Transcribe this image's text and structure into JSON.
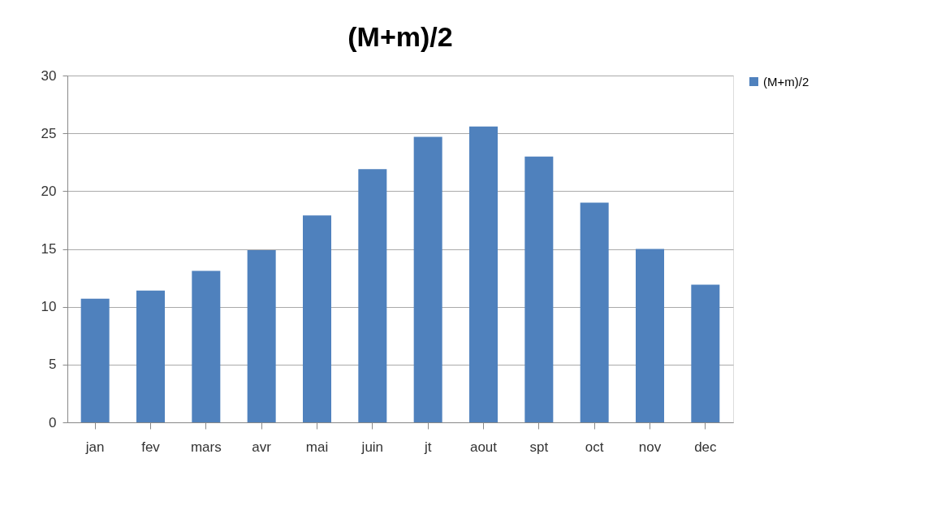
{
  "chart_data": {
    "type": "bar",
    "title": "(M+m)/2",
    "categories": [
      "jan",
      "fev",
      "mars",
      "avr",
      "mai",
      "juin",
      "jt",
      "aout",
      "spt",
      "oct",
      "nov",
      "dec"
    ],
    "series": [
      {
        "name": "(M+m)/2",
        "color": "#4f81bd",
        "values": [
          10.7,
          11.4,
          13.1,
          14.9,
          17.9,
          21.9,
          24.7,
          25.6,
          23.0,
          19.0,
          15.0,
          11.9
        ]
      }
    ],
    "ylim": [
      0,
      30
    ],
    "yticks": [
      0,
      5,
      10,
      15,
      20,
      25,
      30
    ],
    "grid": "y",
    "legend": "right"
  }
}
